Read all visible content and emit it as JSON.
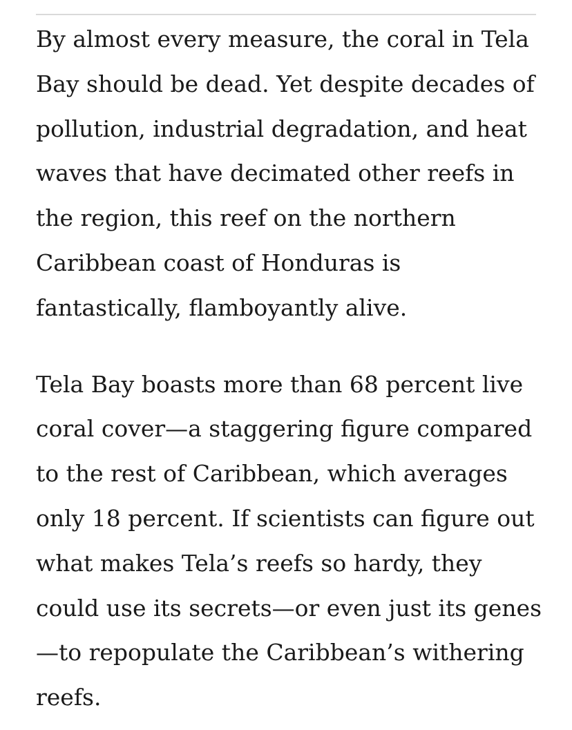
{
  "article": {
    "paragraphs": [
      {
        "lines": [
          "By almost every measure, the coral in Tela",
          "Bay should be dead. Yet despite decades of",
          "pollution, industrial degradation, and heat",
          "waves that have decimated other reefs in",
          "the region, this reef on the northern",
          "Caribbean coast of Honduras is",
          "fantastically, flamboyantly alive."
        ]
      },
      {
        "lines": [
          "Tela Bay boasts more than 68 percent live",
          "coral cover—a staggering figure compared",
          "to the rest of Caribbean, which averages",
          "only 18 percent. If scientists can figure out",
          "what makes Tela’s reefs so hardy, they",
          "could use its secrets—or even just its genes",
          "—to repopulate the Caribbean’s withering",
          "reefs."
        ]
      }
    ]
  }
}
